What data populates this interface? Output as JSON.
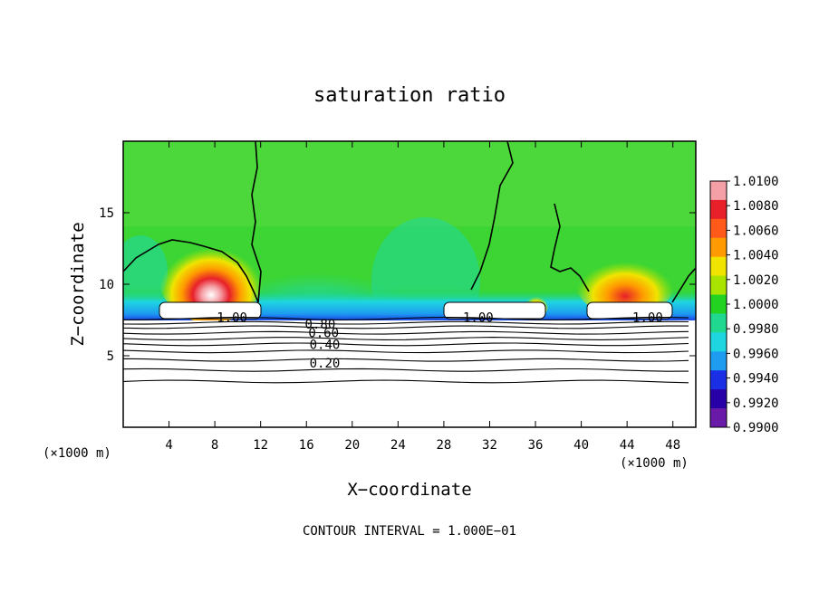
{
  "chart_data": {
    "type": "heatmap",
    "title": "saturation ratio",
    "xlabel": "X−coordinate",
    "ylabel": "Z−coordinate",
    "x_unit_left": "(×1000 m)",
    "x_unit_right": "(×1000 m)",
    "xlim": [
      0,
      50
    ],
    "ylim": [
      0,
      20
    ],
    "xticks": [
      4,
      8,
      12,
      16,
      20,
      24,
      28,
      32,
      36,
      40,
      44,
      48
    ],
    "yticks": [
      5,
      10,
      15
    ],
    "colorbar": {
      "levels": [
        "1.0100",
        "1.0080",
        "1.0060",
        "1.0040",
        "1.0020",
        "1.0000",
        "0.9980",
        "0.9960",
        "0.9940",
        "0.9920",
        "0.9900"
      ],
      "colors": [
        "#f4a0a6",
        "#e8202a",
        "#ff5a1a",
        "#ff9a00",
        "#f0e400",
        "#a8e400",
        "#22d322",
        "#20d890",
        "#1ed6e0",
        "#1e9cf0",
        "#1a2ee6",
        "#2800a8",
        "#6a1aa8"
      ]
    },
    "contour_interval": "CONTOUR INTERVAL = 1.000E−01",
    "contour_labels": [
      {
        "text": "1.00",
        "x": 9.5,
        "z": 7.7
      },
      {
        "text": "0.80",
        "x": 17.2,
        "z": 7.2
      },
      {
        "text": "0.60",
        "x": 17.5,
        "z": 6.6
      },
      {
        "text": "0.40",
        "x": 17.6,
        "z": 5.8
      },
      {
        "text": "0.20",
        "x": 17.6,
        "z": 4.5
      },
      {
        "text": "1.00",
        "x": 31.0,
        "z": 7.7
      },
      {
        "text": "1.00",
        "x": 45.8,
        "z": 7.7
      }
    ],
    "contour_heights_z": [
      7.6,
      7.3,
      7.0,
      6.6,
      6.2,
      5.8,
      5.3,
      4.7,
      4.0,
      3.2
    ],
    "supersaturated_zones": [
      {
        "x_center": 7.8,
        "z_center": 10.0,
        "peak": 1.01
      },
      {
        "x_center": 44.0,
        "z_center": 9.8,
        "peak": 1.006
      },
      {
        "x_center": 36.0,
        "z_center": 8.4,
        "peak": 1.004
      }
    ],
    "subsaturated_zone": {
      "x_range": [
        13,
        24
      ],
      "z_range": [
        7.6,
        14
      ],
      "min": 0.992
    }
  }
}
